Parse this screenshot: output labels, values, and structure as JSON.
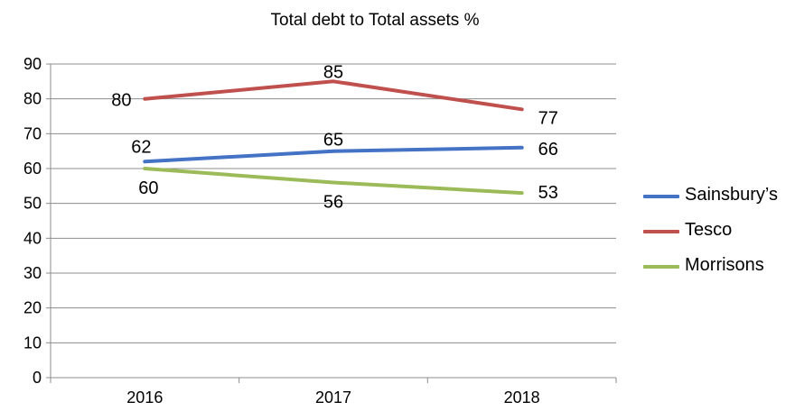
{
  "chart_data": {
    "type": "line",
    "title": "Total debt to Total assets %",
    "xlabel": "",
    "ylabel": "",
    "categories": [
      "2016",
      "2017",
      "2018"
    ],
    "ylim": [
      0,
      90
    ],
    "yticks": [
      "0",
      "10",
      "20",
      "30",
      "40",
      "50",
      "60",
      "70",
      "80",
      "90"
    ],
    "grid": true,
    "legend_position": "right",
    "series": [
      {
        "name": "Sainsbury’s",
        "color": "#4472C4",
        "values": [
          62,
          65,
          66
        ],
        "labels": [
          "62",
          "65",
          "66"
        ]
      },
      {
        "name": "Tesco",
        "color": "#C0504D",
        "values": [
          80,
          85,
          77
        ],
        "labels": [
          "80",
          "85",
          "77"
        ]
      },
      {
        "name": "Morrisons",
        "color": "#9BBB59",
        "values": [
          60,
          56,
          53
        ],
        "labels": [
          "60",
          "56",
          "53"
        ]
      }
    ]
  }
}
